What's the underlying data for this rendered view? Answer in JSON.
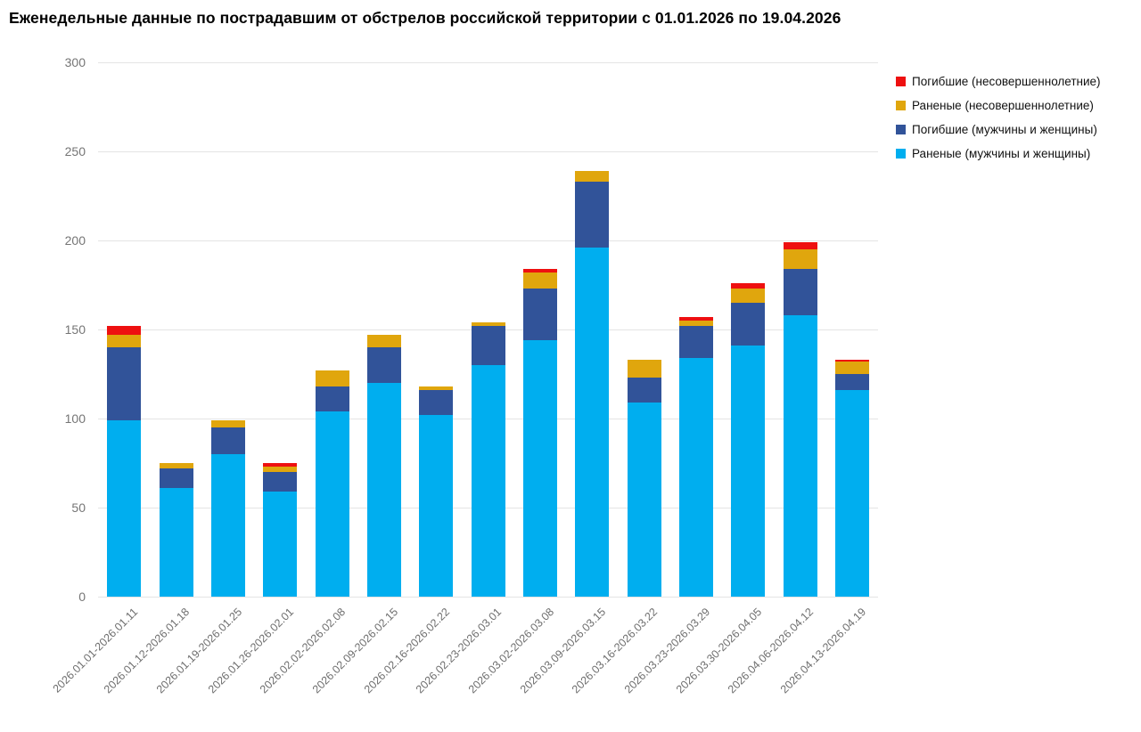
{
  "title": "Еженедельные данные по пострадавшим от обстрелов российской территории с 01.01.2026 по 19.04.2026",
  "colors": {
    "red": "#ee1010",
    "yellow": "#e0a60d",
    "dark_blue": "#315399",
    "light_blue": "#00aeef",
    "grid": "#e4e4e4",
    "ytick_text": "#757575",
    "xtick_text": "#6e6e6e"
  },
  "legend": [
    {
      "label": "Погибшие (несовершеннолетние)",
      "color_key": "red"
    },
    {
      "label": "Раненые (несовершеннолетние)",
      "color_key": "yellow"
    },
    {
      "label": "Погибшие (мужчины и женщины)",
      "color_key": "dark_blue"
    },
    {
      "label": "Раненые (мужчины и женщины)",
      "color_key": "light_blue"
    }
  ],
  "chart_data": {
    "type": "bar",
    "stacked": true,
    "title": "Еженедельные данные по пострадавшим от обстрелов российской территории с 01.01.2026 по 19.04.2026",
    "xlabel": "",
    "ylabel": "",
    "ylim": [
      0,
      300
    ],
    "yticks": [
      0,
      50,
      100,
      150,
      200,
      250,
      300
    ],
    "grid": true,
    "legend_position": "top-right",
    "categories": [
      "2026.01.01-2026.01.11",
      "2026.01.12-2026.01.18",
      "2026.01.19-2026.01.25",
      "2026.01.26-2026.02.01",
      "2026.02.02-2026.02.08",
      "2026.02.09-2026.02.15",
      "2026.02.16-2026.02.22",
      "2026.02.23-2026.03.01",
      "2026.03.02-2026.03.08",
      "2026.03.09-2026.03.15",
      "2026.03.16-2026.03.22",
      "2026.03.23-2026.03.29",
      "2026.03.30-2026.04.05",
      "2026.04.06-2026.04.12",
      "2026.04.13-2026.04.19"
    ],
    "series": [
      {
        "name": "Раненые (мужчины и женщины)",
        "color_key": "light_blue",
        "values": [
          99,
          61,
          80,
          59,
          104,
          120,
          102,
          130,
          144,
          196,
          109,
          134,
          141,
          158,
          116
        ]
      },
      {
        "name": "Погибшие (мужчины и женщины)",
        "color_key": "dark_blue",
        "values": [
          41,
          11,
          15,
          11,
          14,
          20,
          14,
          22,
          29,
          37,
          14,
          18,
          24,
          26,
          9
        ]
      },
      {
        "name": "Раненые (несовершеннолетние)",
        "color_key": "yellow",
        "values": [
          7,
          3,
          4,
          3,
          9,
          7,
          2,
          2,
          9,
          6,
          10,
          3,
          8,
          11,
          7
        ]
      },
      {
        "name": "Погибшие (несовершеннолетние)",
        "color_key": "red",
        "values": [
          5,
          0,
          0,
          2,
          0,
          0,
          0,
          0,
          2,
          0,
          0,
          2,
          3,
          4,
          1
        ]
      }
    ],
    "totals": [
      152,
      75,
      99,
      75,
      127,
      147,
      118,
      154,
      184,
      239,
      133,
      157,
      176,
      199,
      133
    ]
  }
}
